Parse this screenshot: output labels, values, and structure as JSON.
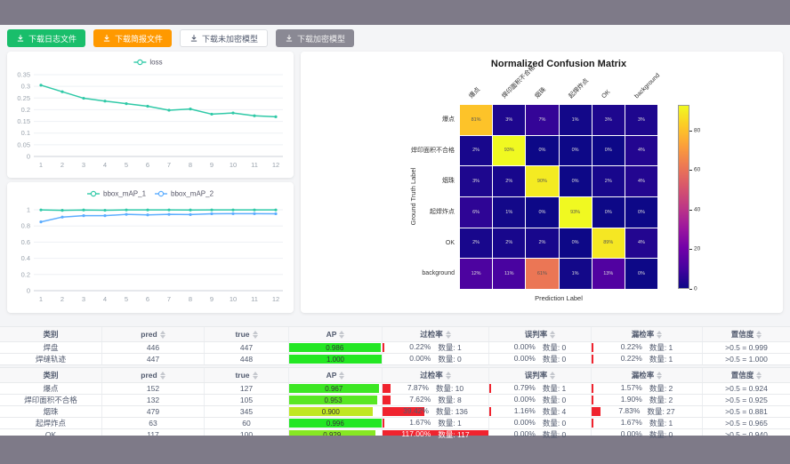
{
  "toolbar": {
    "buttons": [
      {
        "label": "下载日志文件",
        "bg": "#19be6b",
        "color": "#ffffff"
      },
      {
        "label": "下载简报文件",
        "bg": "#ff9900",
        "color": "#ffffff"
      },
      {
        "label": "下载未加密模型",
        "bg": "#ffffff",
        "color": "#515a6e",
        "border": "#dcdee2"
      },
      {
        "label": "下载加密模型",
        "bg": "#8a8994",
        "color": "#f0f0f0"
      }
    ]
  },
  "colors": {
    "accent_teal": "#2fc9a7",
    "accent_blue": "#5cadff",
    "bar_red": "#f0232e",
    "frame": "#7e7a88"
  },
  "chart_data": [
    {
      "type": "line",
      "title": "loss",
      "legend": [
        "loss"
      ],
      "legend_position": "top",
      "x": [
        1,
        2,
        3,
        4,
        5,
        6,
        7,
        8,
        9,
        10,
        11,
        12
      ],
      "series": [
        {
          "name": "loss",
          "color": "#2fc9a7",
          "values": [
            0.305,
            0.277,
            0.249,
            0.237,
            0.226,
            0.215,
            0.198,
            0.203,
            0.181,
            0.186,
            0.174,
            0.17
          ]
        }
      ],
      "ylim": [
        0,
        0.35
      ],
      "yticks": [
        0,
        0.05,
        0.1,
        0.15,
        0.2,
        0.25,
        0.3,
        0.35
      ],
      "grid": true
    },
    {
      "type": "line",
      "title": "bbox_mAP",
      "legend": [
        "bbox_mAP_1",
        "bbox_mAP_2"
      ],
      "legend_position": "top",
      "x": [
        1,
        2,
        3,
        4,
        5,
        6,
        7,
        8,
        9,
        10,
        11,
        12
      ],
      "series": [
        {
          "name": "bbox_mAP_1",
          "color": "#2fc9a7",
          "values": [
            0.998,
            0.993,
            0.997,
            0.994,
            0.998,
            0.998,
            0.998,
            0.997,
            0.998,
            0.998,
            0.998,
            0.998
          ]
        },
        {
          "name": "bbox_mAP_2",
          "color": "#5cadff",
          "values": [
            0.85,
            0.91,
            0.927,
            0.927,
            0.943,
            0.937,
            0.943,
            0.941,
            0.951,
            0.952,
            0.952,
            0.951
          ]
        }
      ],
      "ylim": [
        0,
        1
      ],
      "yticks": [
        0,
        0.2,
        0.4,
        0.6,
        0.8,
        1
      ],
      "grid": true
    },
    {
      "type": "heatmap",
      "title": "Normalized Confusion Matrix",
      "xlabel": "Prediction Label",
      "ylabel": "Ground Truth Label",
      "labels": [
        "爆点",
        "焊印面积不合格",
        "烟珠",
        "起焊炸点",
        "OK",
        "background"
      ],
      "unit": "%",
      "vmax": 93,
      "colorbar_ticks": [
        0,
        20,
        40,
        60,
        80
      ],
      "colormap": "plasma",
      "values": [
        [
          81,
          3,
          7,
          1,
          3,
          3
        ],
        [
          2,
          93,
          0,
          0,
          0,
          4
        ],
        [
          3,
          2,
          90,
          0,
          2,
          4
        ],
        [
          6,
          1,
          0,
          93,
          0,
          0
        ],
        [
          2,
          2,
          2,
          0,
          89,
          4
        ],
        [
          12,
          11,
          61,
          1,
          13,
          0
        ]
      ]
    }
  ],
  "table_columns": [
    {
      "key": "category",
      "label": "类别",
      "sortable": false
    },
    {
      "key": "pred",
      "label": "pred",
      "sortable": true
    },
    {
      "key": "true_count",
      "label": "true",
      "sortable": true
    },
    {
      "key": "ap",
      "label": "AP",
      "sortable": true
    },
    {
      "key": "overkill",
      "label": "过检率",
      "sortable": true
    },
    {
      "key": "false_judge",
      "label": "误判率",
      "sortable": true
    },
    {
      "key": "miss",
      "label": "漏检率",
      "sortable": true
    },
    {
      "key": "confidence",
      "label": "置信度",
      "sortable": true
    }
  ],
  "tables": [
    {
      "rows": [
        {
          "category": "焊盘",
          "pred": "446",
          "true_count": "447",
          "ap": {
            "label": "0.986",
            "value": 0.986
          },
          "overkill": {
            "rate": 0.22,
            "rate_label": "0.22%",
            "count": "数量: 1"
          },
          "false_judge": {
            "rate": 0,
            "rate_label": "0.00%",
            "count": "数量: 0"
          },
          "miss": {
            "rate": 0.22,
            "rate_label": "0.22%",
            "count": "数量: 1"
          },
          "confidence": ">0.5 = 0.999"
        },
        {
          "category": "焊缝轨迹",
          "pred": "447",
          "true_count": "448",
          "ap": {
            "label": "1.000",
            "value": 1.0
          },
          "overkill": {
            "rate": 0,
            "rate_label": "0.00%",
            "count": "数量: 0"
          },
          "false_judge": {
            "rate": 0,
            "rate_label": "0.00%",
            "count": "数量: 0"
          },
          "miss": {
            "rate": 0.22,
            "rate_label": "0.22%",
            "count": "数量: 1"
          },
          "confidence": ">0.5 = 1.000"
        }
      ]
    },
    {
      "rows": [
        {
          "category": "爆点",
          "pred": "152",
          "true_count": "127",
          "ap": {
            "label": "0.967",
            "value": 0.967
          },
          "overkill": {
            "rate": 7.87,
            "rate_label": "7.87%",
            "count": "数量: 10"
          },
          "false_judge": {
            "rate": 0.79,
            "rate_label": "0.79%",
            "count": "数量: 1"
          },
          "miss": {
            "rate": 1.57,
            "rate_label": "1.57%",
            "count": "数量: 2"
          },
          "confidence": ">0.5 = 0.924"
        },
        {
          "category": "焊印面积不合格",
          "pred": "132",
          "true_count": "105",
          "ap": {
            "label": "0.953",
            "value": 0.953
          },
          "overkill": {
            "rate": 7.62,
            "rate_label": "7.62%",
            "count": "数量: 8"
          },
          "false_judge": {
            "rate": 0,
            "rate_label": "0.00%",
            "count": "数量: 0"
          },
          "miss": {
            "rate": 1.9,
            "rate_label": "1.90%",
            "count": "数量: 2"
          },
          "confidence": ">0.5 = 0.925"
        },
        {
          "category": "烟珠",
          "pred": "479",
          "true_count": "345",
          "ap": {
            "label": "0.900",
            "value": 0.9
          },
          "overkill": {
            "rate": 39.42,
            "rate_label": "39.42%",
            "count": "数量: 136"
          },
          "false_judge": {
            "rate": 1.16,
            "rate_label": "1.16%",
            "count": "数量: 4"
          },
          "miss": {
            "rate": 7.83,
            "rate_label": "7.83%",
            "count": "数量: 27"
          },
          "confidence": ">0.5 = 0.881"
        },
        {
          "category": "起焊炸点",
          "pred": "63",
          "true_count": "60",
          "ap": {
            "label": "0.996",
            "value": 0.996
          },
          "overkill": {
            "rate": 1.67,
            "rate_label": "1.67%",
            "count": "数量: 1"
          },
          "false_judge": {
            "rate": 0,
            "rate_label": "0.00%",
            "count": "数量: 0"
          },
          "miss": {
            "rate": 1.67,
            "rate_label": "1.67%",
            "count": "数量: 1"
          },
          "confidence": ">0.5 = 0.965"
        },
        {
          "category": "OK",
          "pred": "117",
          "true_count": "100",
          "ap": {
            "label": "0.929",
            "value": 0.929
          },
          "overkill": {
            "rate": 117.0,
            "rate_label": "117.00%",
            "count": "数量: 117"
          },
          "false_judge": {
            "rate": 0,
            "rate_label": "0.00%",
            "count": "数量: 0"
          },
          "miss": {
            "rate": 0,
            "rate_label": "0.00%",
            "count": "数量: 0"
          },
          "confidence": ">0.5 = 0.940"
        }
      ]
    }
  ]
}
